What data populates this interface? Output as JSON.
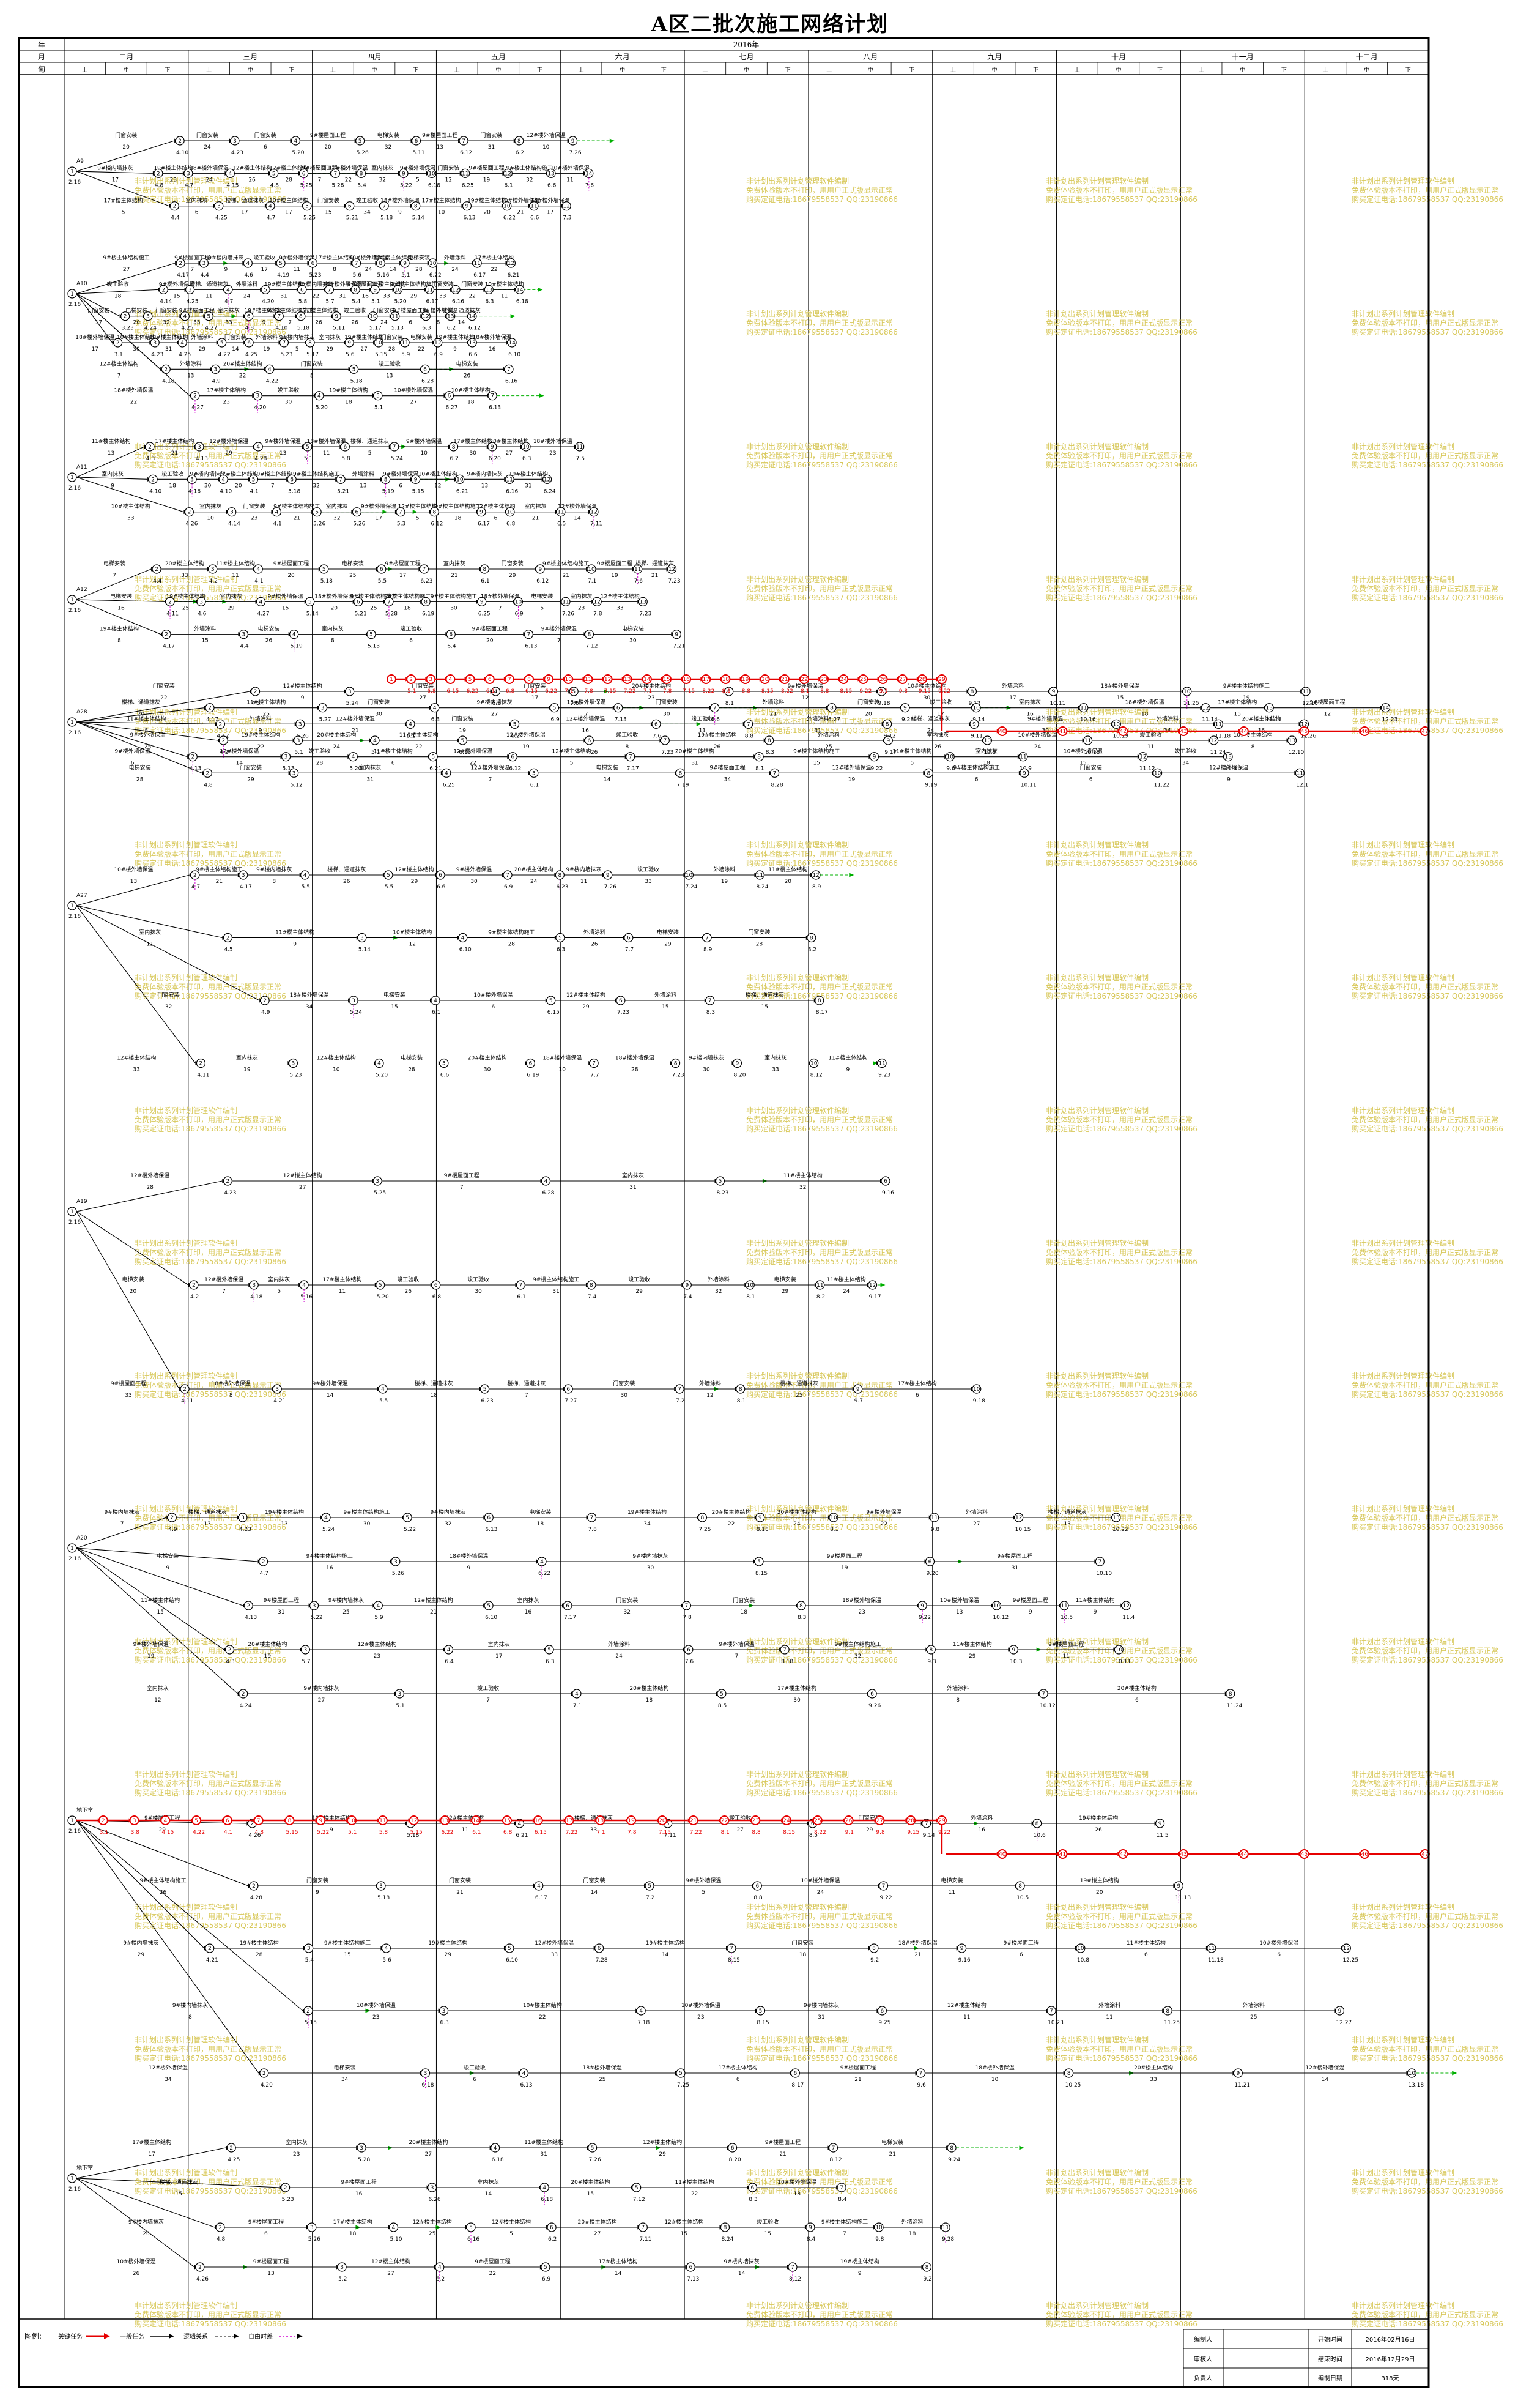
{
  "title": "A区二批次施工网络计划",
  "header": {
    "row_labels": [
      "年",
      "月",
      "旬"
    ],
    "year": "2016年",
    "months": [
      "二月",
      "三月",
      "四月",
      "五月",
      "六月",
      "七月",
      "八月",
      "九月",
      "十月",
      "十一月",
      "十二月"
    ],
    "dekads": [
      "上",
      "中",
      "下"
    ]
  },
  "watermark_lines": [
    "非计划出系列计划管理软件编制",
    "免费体验版本不打印，用用户正式版显示正常",
    "购买定证电话:18679558537 QQ:23190866"
  ],
  "rows": [
    {
      "label": "A9",
      "date": "2.16"
    },
    {
      "label": "A10",
      "date": "2.16"
    },
    {
      "label": "A11",
      "date": "2.16"
    },
    {
      "label": "A12",
      "date": "2.16"
    },
    {
      "label": "A28",
      "date": "2.16"
    },
    {
      "label": "A27",
      "date": "2.16"
    },
    {
      "label": "A19",
      "date": "2.16"
    },
    {
      "label": "A20",
      "date": "2.16"
    },
    {
      "label": "地下室",
      "date": "2.16"
    }
  ],
  "task_samples": [
    "9#楼主体结构施工",
    "9#楼外墙保温",
    "9#楼屋面工程",
    "9#楼内墙抹灰",
    "10#楼主体结构",
    "10#楼外墙保温",
    "11#楼主体结构",
    "12#楼主体结构",
    "12#楼外墙保温",
    "17#楼主体结构",
    "19#楼主体结构",
    "20#楼主体结构",
    "18#楼外墙保温",
    "门窗安装",
    "楼梯、通道抹灰",
    "外墙涂料",
    "室内抹灰",
    "电梯安装",
    "竣工验收"
  ],
  "legend": {
    "label": "图例:",
    "items": [
      "关键任务",
      "一般任务",
      "逻辑关系",
      "自由时差"
    ]
  },
  "footer": {
    "cells": [
      [
        "编制人",
        "",
        "开始时间",
        "2016年02月16日"
      ],
      [
        "审核人",
        "",
        "结束时间",
        "2016年12月29日"
      ],
      [
        "负责人",
        "",
        "编制日期",
        "318天"
      ]
    ]
  },
  "colors": {
    "critical": "#e60000",
    "normal": "#000000",
    "float": "#d000d0",
    "green": "#00b000",
    "grid": "#000000",
    "watermark": "#d8c85a"
  }
}
